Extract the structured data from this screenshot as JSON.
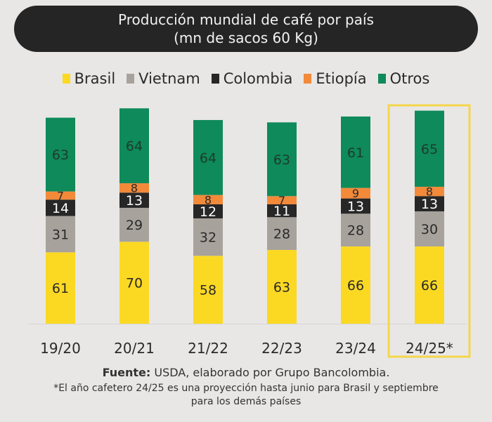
{
  "chart_data": {
    "type": "bar",
    "stacked": true,
    "title": "Producción mundial de café por país",
    "subtitle": "(mn de sacos 60 Kg)",
    "xlabel": "",
    "ylabel": "",
    "categories": [
      "19/20",
      "20/21",
      "21/22",
      "22/23",
      "23/24",
      "24/25*"
    ],
    "series": [
      {
        "name": "Brasil",
        "color": "#fbd923",
        "label_color": "#2a2a2a",
        "values": [
          61,
          70,
          58,
          63,
          66,
          66
        ]
      },
      {
        "name": "Vietnam",
        "color": "#a8a29d",
        "label_color": "#2a2a2a",
        "values": [
          31,
          29,
          32,
          28,
          28,
          30
        ]
      },
      {
        "name": "Colombia",
        "color": "#272727",
        "label_color": "#ffffff",
        "values": [
          14,
          13,
          12,
          11,
          13,
          13
        ]
      },
      {
        "name": "Etiopía",
        "color": "#f28a3a",
        "label_color": "#2a2a2a",
        "values": [
          7,
          8,
          8,
          7,
          9,
          8
        ]
      },
      {
        "name": "Otros",
        "color": "#0f8a5a",
        "label_color": "#1d3b2b",
        "values": [
          63,
          64,
          64,
          63,
          61,
          65
        ]
      }
    ],
    "highlighted_category": "24/25*",
    "highlight_color": "#f5d64b",
    "legend_position": "top-center",
    "grid": false,
    "y_axis_visible": false,
    "data_labels": true
  },
  "footer": {
    "source_label": "Fuente:",
    "source_text": " USDA, elaborado por Grupo Bancolombia.",
    "note_line1": "*El año cafetero 24/25 es una proyección hasta junio para Brasil y septiembre",
    "note_line2": "para los demás países"
  }
}
